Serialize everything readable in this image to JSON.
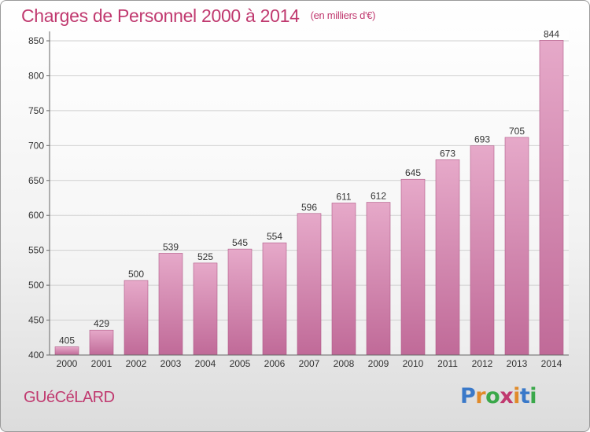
{
  "title": "Charges de Personnel 2000 à 2014",
  "subtitle": "(en milliers d'€)",
  "commune": "GUéCéLARD",
  "logo": {
    "text": "Proxiti",
    "colors": [
      "#3a79c9",
      "#e08a2a",
      "#3aa84a",
      "#c0396f",
      "#e08a2a",
      "#3a79c9",
      "#3aa84a"
    ]
  },
  "colors": {
    "bar_top": "#e6a9c9",
    "bar_bottom": "#c06a98",
    "title": "#c0396f"
  },
  "chart_data": {
    "type": "bar",
    "categories": [
      "2000",
      "2001",
      "2002",
      "2003",
      "2004",
      "2005",
      "2006",
      "2007",
      "2008",
      "2009",
      "2010",
      "2011",
      "2012",
      "2013",
      "2014"
    ],
    "values": [
      405,
      429,
      500,
      539,
      525,
      545,
      554,
      596,
      611,
      612,
      645,
      673,
      693,
      705,
      844
    ],
    "ylim": [
      400,
      850
    ],
    "yticks": [
      400,
      450,
      500,
      550,
      600,
      650,
      700,
      750,
      800,
      850
    ],
    "grid": true
  }
}
